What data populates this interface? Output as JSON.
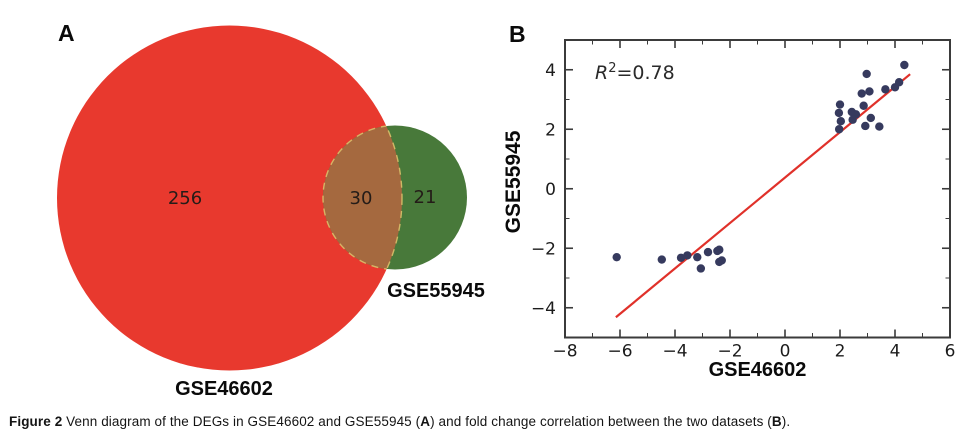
{
  "panel_a": {
    "letter": "A",
    "venn": {
      "left_label": "GSE46602",
      "right_label": "GSE55945",
      "left_only_count": "256",
      "overlap_count": "30",
      "right_only_count": "21",
      "left_color": "#e8392e",
      "right_color": "#48793a",
      "overlap_color": "#a5693f"
    }
  },
  "panel_b": {
    "letter": "B"
  },
  "chart_data": {
    "type": "scatter",
    "title": "",
    "xlabel": "GSE46602",
    "ylabel": "GSE55945",
    "annotation": {
      "var": "R",
      "sup": "2",
      "rest": "=0.78"
    },
    "xlim": [
      -8,
      6
    ],
    "ylim": [
      -5,
      5
    ],
    "grid": false,
    "legend": "none",
    "xticks": {
      "values": [
        -8,
        -6,
        -4,
        -2,
        0,
        2,
        4,
        6
      ],
      "labels": [
        "−8",
        "−6",
        "−4",
        "−2",
        "0",
        "2",
        "4",
        "6"
      ]
    },
    "yticks": {
      "values": [
        -4,
        -2,
        0,
        2,
        4
      ],
      "labels": [
        "−4",
        "−2",
        "0",
        "2",
        "4"
      ]
    },
    "minor_xticks": [
      -7,
      -5,
      -3,
      -1,
      1,
      3,
      5
    ],
    "minor_yticks": [
      -3,
      -1,
      1,
      3
    ],
    "points": [
      [
        -6.12,
        -2.3
      ],
      [
        -4.48,
        -2.38
      ],
      [
        -3.78,
        -2.32
      ],
      [
        -3.55,
        -2.24
      ],
      [
        -3.19,
        -2.3
      ],
      [
        -3.06,
        -2.68
      ],
      [
        -2.8,
        -2.13
      ],
      [
        -2.46,
        -2.09
      ],
      [
        -2.39,
        -2.05
      ],
      [
        -2.39,
        -2.46
      ],
      [
        -2.3,
        -2.41
      ],
      [
        1.97,
        2.0
      ],
      [
        2.0,
        2.83
      ],
      [
        1.96,
        2.55
      ],
      [
        2.03,
        2.27
      ],
      [
        2.43,
        2.58
      ],
      [
        2.58,
        2.5
      ],
      [
        2.46,
        2.32
      ],
      [
        2.86,
        2.79
      ],
      [
        2.79,
        3.2
      ],
      [
        2.92,
        2.11
      ],
      [
        2.97,
        3.86
      ],
      [
        3.07,
        3.27
      ],
      [
        3.12,
        2.38
      ],
      [
        3.43,
        2.09
      ],
      [
        3.65,
        3.34
      ],
      [
        4.0,
        3.41
      ],
      [
        4.15,
        3.58
      ],
      [
        4.34,
        4.16
      ]
    ],
    "trendline": {
      "x1": -6.15,
      "y1": -4.32,
      "x2": 4.55,
      "y2": 3.85
    },
    "colors": {
      "point": "#363a5e",
      "line": "#e0312a",
      "axis": "#3b3b3b",
      "tick_text": "#1c1c1c"
    }
  },
  "caption": {
    "parts": [
      {
        "text": "Figure 2",
        "bold": true
      },
      {
        "text": " Venn diagram of the DEGs in GSE46602 and GSE55945 (",
        "bold": false
      },
      {
        "text": "A",
        "bold": true
      },
      {
        "text": ") and fold change correlation between the two datasets (",
        "bold": false
      },
      {
        "text": "B",
        "bold": true
      },
      {
        "text": ").",
        "bold": false
      }
    ]
  }
}
